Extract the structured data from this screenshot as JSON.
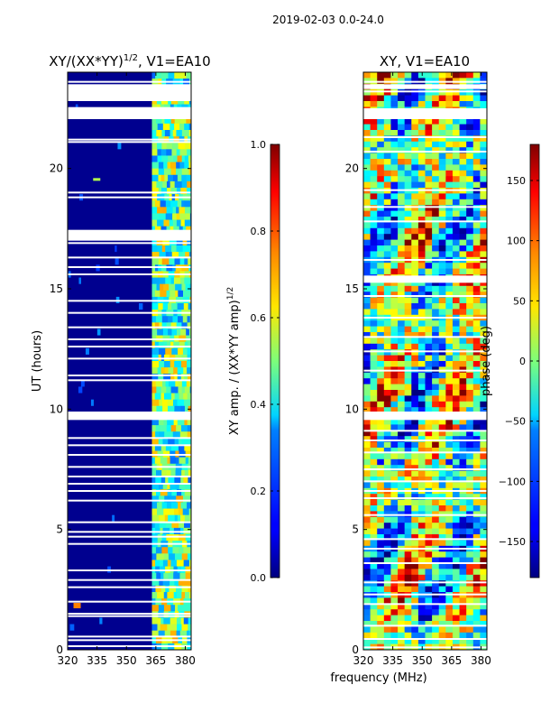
{
  "figure": {
    "suptitle": "2019-02-03 0.0-24.0",
    "xlabel": "frequency (MHz)"
  },
  "chart_data": [
    {
      "type": "heatmap",
      "title_main": "XY/(XX*YY)",
      "title_sup": "1/2",
      "title_tail": ", V1=EA10",
      "xlabel": "",
      "ylabel": "UT (hours)",
      "xlim": [
        320,
        383
      ],
      "ylim": [
        0,
        24
      ],
      "xticks": [
        320,
        335,
        350,
        365,
        380
      ],
      "yticks": [
        0,
        5,
        10,
        15,
        20
      ],
      "gaps_hours": [
        0.15,
        0.4,
        0.55,
        1.4,
        1.5,
        2.0,
        2.6,
        2.9,
        3.3,
        4.4,
        4.7,
        4.9,
        5.3,
        6.2,
        6.6,
        6.9,
        7.2,
        7.6,
        8.1,
        8.5,
        8.8,
        9.75,
        11.2,
        11.4,
        12.1,
        12.6,
        12.9,
        13.4,
        14.0,
        14.5,
        15.6,
        15.9,
        16.3,
        16.9,
        17.4,
        18.8,
        19.0,
        21.1,
        21.2,
        22.4,
        23.4,
        23.6
      ],
      "wide_gaps_hours": [
        [
          9.55,
          9.9
        ],
        [
          17.0,
          17.45
        ],
        [
          22.05,
          22.55
        ],
        [
          22.8,
          23.5
        ]
      ],
      "band_start_mhz": 363,
      "colorbar": {
        "label_main": "XY amp. / (XX*YY amp)",
        "label_sup": "1/2",
        "range": [
          0.0,
          1.0
        ],
        "ticks": [
          "0.0",
          "0.2",
          "0.4",
          "0.6",
          "0.8",
          "1.0"
        ],
        "tick_values": [
          0.0,
          0.2,
          0.4,
          0.6,
          0.8,
          1.0
        ]
      }
    },
    {
      "type": "heatmap",
      "title": "XY, V1=EA10",
      "xlabel": "frequency (MHz)",
      "ylabel": "",
      "xlim": [
        320,
        383
      ],
      "ylim": [
        0,
        24
      ],
      "xticks": [
        320,
        335,
        350,
        365,
        380
      ],
      "yticks": [
        0,
        5,
        10,
        15,
        20
      ],
      "gaps_hours": [
        0.1,
        0.45,
        1.0,
        1.9,
        2.3,
        2.8,
        3.6,
        4.2,
        4.6,
        5.6,
        6.3,
        6.6,
        7.0,
        7.5,
        8.2,
        8.7,
        9.1,
        11.6,
        12.4,
        13.0,
        13.8,
        14.7,
        16.2,
        17.8,
        18.4,
        19.1,
        20.7,
        21.3,
        23.2,
        23.6
      ],
      "wide_gaps_hours": [
        [
          9.55,
          9.9
        ],
        [
          15.25,
          15.55
        ],
        [
          22.05,
          22.5
        ],
        [
          23.3,
          23.5
        ]
      ],
      "colorbar": {
        "label": "phase (deg)",
        "range": [
          -180,
          180
        ],
        "ticks": [
          "150",
          "100",
          "50",
          "0",
          "−50",
          "−100",
          "−150"
        ],
        "tick_values": [
          150,
          100,
          50,
          0,
          -50,
          -100,
          -150
        ]
      }
    }
  ]
}
